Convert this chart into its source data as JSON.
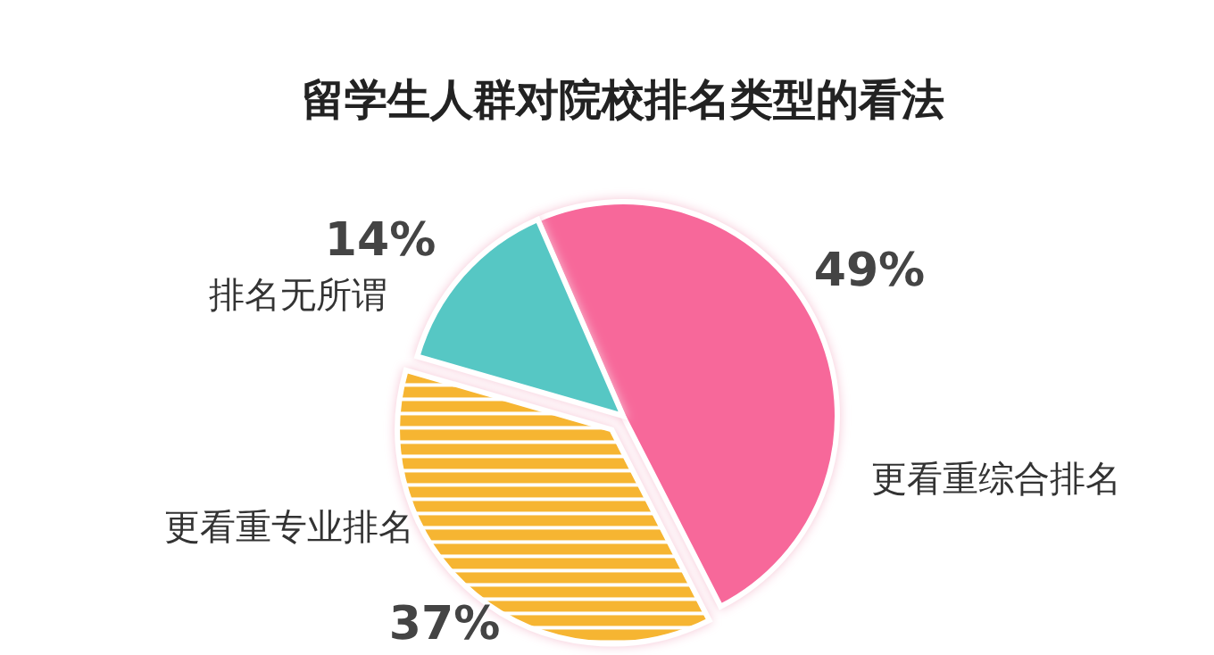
{
  "chart_data": {
    "type": "pie",
    "title": "留学生人群对院校排名类型的看法",
    "categories": [
      "更看重综合排名",
      "更看重专业排名",
      "排名无所谓"
    ],
    "values": [
      49,
      37,
      14
    ],
    "colors": [
      "#f7679a",
      "#f6b530",
      "#56c7c4"
    ],
    "value_labels": [
      "49%",
      "37%",
      "14%"
    ]
  }
}
